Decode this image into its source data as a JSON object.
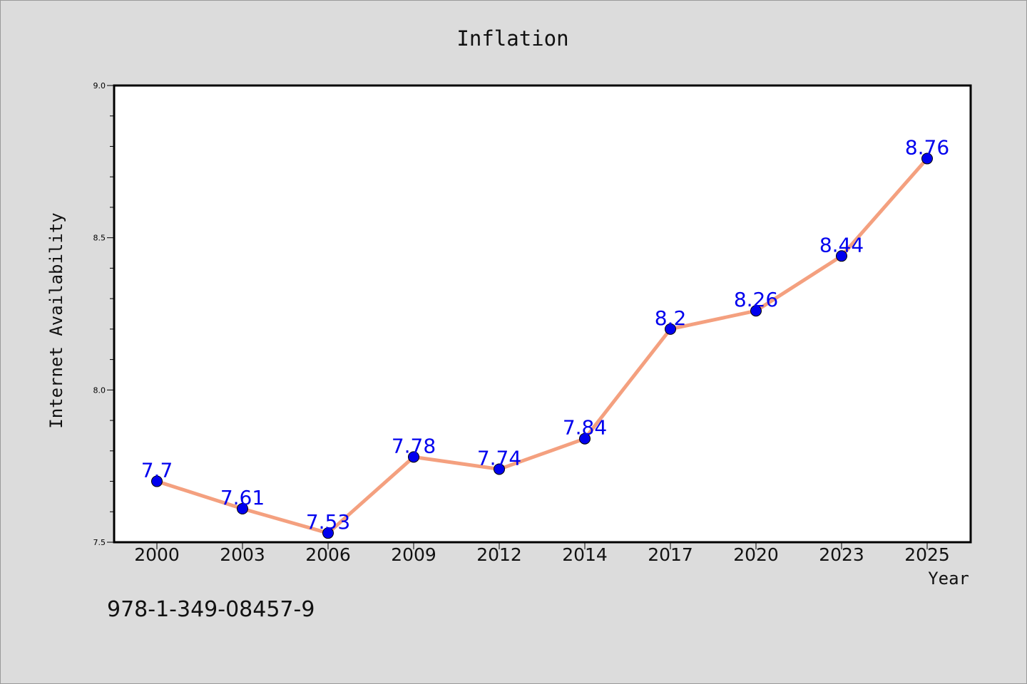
{
  "chart_data": {
    "type": "line",
    "title": "Inflation",
    "xlabel": "Year",
    "ylabel": "Internet Availability",
    "categories": [
      "2000",
      "2003",
      "2006",
      "2009",
      "2012",
      "2014",
      "2017",
      "2020",
      "2023",
      "2025"
    ],
    "series": [
      {
        "values": [
          7.7,
          7.61,
          7.53,
          7.78,
          7.74,
          7.84,
          8.2,
          8.26,
          8.44,
          8.76
        ],
        "labels": [
          "7.7",
          "7.61",
          "7.53",
          "7.78",
          "7.74",
          "7.84",
          "8.2",
          "8.26",
          "8.44",
          "8.76"
        ],
        "line_color": "#f4a07f",
        "marker_color": "#0000ee",
        "label_color": "#0000ee"
      }
    ],
    "ylim": [
      7.5,
      9.0
    ],
    "yticks": [
      7.5,
      8.0,
      8.5,
      9.0
    ],
    "ytick_labels": [
      "7.5",
      "8.0",
      "8.5",
      "9.0"
    ],
    "grid": false,
    "legend": "none"
  },
  "annotation": {
    "isbn": "978-1-349-08457-9"
  },
  "colors": {
    "background": "#dcdcdc",
    "plot_background": "#ffffff",
    "axis": "#000000"
  }
}
